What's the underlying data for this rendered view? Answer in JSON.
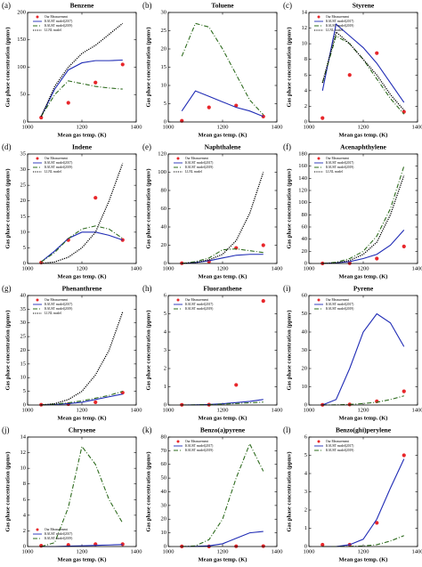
{
  "chart_data": [
    {
      "type": "line",
      "letter": "(a)",
      "title": "Benzene",
      "x_label": "Mean gas temp. (K)",
      "y_label": "Gas phase concentration (ppmv)",
      "xlim": [
        1000,
        1400
      ],
      "xticks": [
        1000,
        1200,
        1400
      ],
      "ylim": [
        0,
        200
      ],
      "yticks": [
        0,
        50,
        100,
        150,
        200
      ],
      "x": [
        1050,
        1100,
        1150,
        1200,
        1250,
        1300,
        1350
      ],
      "legend": "upper left",
      "series": [
        {
          "name": "Our Measurement",
          "color": "#e8262a",
          "marker": "circle",
          "x": [
            1050,
            1150,
            1250,
            1350
          ],
          "values": [
            8,
            35,
            72,
            105
          ]
        },
        {
          "name": "KAUST model(2017)",
          "color": "#1f2bb5",
          "dash": "solid",
          "values": [
            10,
            60,
            95,
            108,
            112,
            112,
            113
          ]
        },
        {
          "name": "KAUST model(2019)",
          "color": "#2e6b1e",
          "dash": "dashdot",
          "values": [
            10,
            50,
            75,
            70,
            65,
            62,
            60
          ]
        },
        {
          "name": "LLNL model",
          "color": "#000000",
          "dash": "dotted",
          "values": [
            10,
            65,
            100,
            125,
            140,
            160,
            180
          ]
        }
      ]
    },
    {
      "type": "line",
      "letter": "(b)",
      "title": "Toluene",
      "x_label": "Mean gas temp. (K)",
      "y_label": "Gas phase concentration (ppmv)",
      "xlim": [
        1000,
        1400
      ],
      "xticks": [
        1000,
        1200,
        1400
      ],
      "ylim": [
        0,
        30
      ],
      "yticks": [
        0,
        5,
        10,
        15,
        20,
        25,
        30
      ],
      "x": [
        1050,
        1100,
        1150,
        1200,
        1250,
        1300,
        1350
      ],
      "series": [
        {
          "color": "#e8262a",
          "marker": "circle",
          "x": [
            1050,
            1150,
            1250,
            1350
          ],
          "values": [
            0.3,
            4,
            4.5,
            1.5
          ]
        },
        {
          "color": "#1f2bb5",
          "dash": "solid",
          "values": [
            3,
            8.5,
            7,
            5.5,
            4,
            3,
            1.5
          ]
        },
        {
          "color": "#2e6b1e",
          "dash": "dashdot",
          "values": [
            18,
            27,
            26,
            20,
            13,
            6,
            2
          ]
        }
      ]
    },
    {
      "type": "line",
      "letter": "(c)",
      "title": "Styrene",
      "x_label": "Mean gas temp. (K)",
      "y_label": "Gas phase concentration (ppmv)",
      "xlim": [
        1000,
        1400
      ],
      "xticks": [
        1000,
        1200,
        1400
      ],
      "ylim": [
        0,
        14
      ],
      "yticks": [
        0,
        2,
        4,
        6,
        8,
        10,
        12,
        14
      ],
      "x": [
        1050,
        1100,
        1150,
        1200,
        1250,
        1300,
        1350
      ],
      "legend": "upper left",
      "series": [
        {
          "name": "Our Measurement",
          "color": "#e8262a",
          "marker": "circle",
          "x": [
            1050,
            1150,
            1250,
            1350
          ],
          "values": [
            0.5,
            6,
            8.8,
            1.3
          ]
        },
        {
          "name": "KAUST model(2017)",
          "color": "#1f2bb5",
          "dash": "solid",
          "values": [
            4,
            12.5,
            11,
            9.5,
            7.5,
            5,
            2.5
          ]
        },
        {
          "name": "KAUST model(2019)",
          "color": "#2e6b1e",
          "dash": "dashdot",
          "values": [
            5,
            11,
            10,
            8,
            5.5,
            3,
            1
          ]
        },
        {
          "name": "LLNL model",
          "color": "#000000",
          "dash": "dotted",
          "values": [
            5,
            11.5,
            10,
            8,
            6,
            3.5,
            1.5
          ]
        }
      ]
    },
    {
      "type": "line",
      "letter": "(d)",
      "title": "Indene",
      "x_label": "Mean gas temp. (K)",
      "y_label": "Gas phase concentration (ppmv)",
      "xlim": [
        1000,
        1400
      ],
      "xticks": [
        1000,
        1200,
        1400
      ],
      "ylim": [
        0,
        35
      ],
      "yticks": [
        0,
        5,
        10,
        15,
        20,
        25,
        30,
        35
      ],
      "x": [
        1050,
        1100,
        1150,
        1200,
        1250,
        1300,
        1350
      ],
      "legend": "upper left",
      "series": [
        {
          "name": "Our Measurement",
          "color": "#e8262a",
          "marker": "circle",
          "x": [
            1050,
            1150,
            1250,
            1350
          ],
          "values": [
            0.3,
            7.5,
            21,
            7.5
          ]
        },
        {
          "name": "KAUST model(2017)",
          "color": "#1f2bb5",
          "dash": "solid",
          "values": [
            0.5,
            4,
            8,
            10,
            10,
            9,
            7.5
          ]
        },
        {
          "name": "KAUST model(2019)",
          "color": "#2e6b1e",
          "dash": "dashdot",
          "values": [
            0.5,
            3.5,
            8,
            11,
            12,
            11,
            8
          ]
        },
        {
          "name": "LLNL model",
          "color": "#000000",
          "dash": "dotted",
          "values": [
            0,
            0.5,
            2,
            5,
            10,
            20,
            32
          ]
        }
      ]
    },
    {
      "type": "line",
      "letter": "(e)",
      "title": "Naphthalene",
      "x_label": "Mean gas temp. (K)",
      "y_label": "Gas phase concentration (ppmv)",
      "xlim": [
        1000,
        1400
      ],
      "xticks": [
        1000,
        1200,
        1400
      ],
      "ylim": [
        0,
        120
      ],
      "yticks": [
        0,
        20,
        40,
        60,
        80,
        100,
        120
      ],
      "x": [
        1050,
        1100,
        1150,
        1200,
        1250,
        1300,
        1350
      ],
      "legend": "upper left",
      "series": [
        {
          "name": "Our Measurement",
          "color": "#e8262a",
          "marker": "circle",
          "x": [
            1050,
            1150,
            1250,
            1350
          ],
          "values": [
            0.3,
            2,
            17,
            20
          ]
        },
        {
          "name": "KAUST model(2017)",
          "color": "#1f2bb5",
          "dash": "solid",
          "values": [
            0,
            1,
            3,
            6,
            9,
            10,
            10
          ]
        },
        {
          "name": "KAUST model(2019)",
          "color": "#2e6b1e",
          "dash": "dashdot",
          "values": [
            0,
            2,
            6,
            15,
            16,
            14,
            12
          ]
        },
        {
          "name": "LLNL model",
          "color": "#000000",
          "dash": "dotted",
          "values": [
            0,
            1,
            4,
            10,
            25,
            55,
            100
          ]
        }
      ]
    },
    {
      "type": "line",
      "letter": "(f)",
      "title": "Acenaphthylene",
      "x_label": "Mean gas temp. (K)",
      "y_label": "Gas phase concentration (ppmv)",
      "xlim": [
        1000,
        1400
      ],
      "xticks": [
        1000,
        1200,
        1400
      ],
      "ylim": [
        0,
        180
      ],
      "yticks": [
        0,
        20,
        40,
        60,
        80,
        100,
        120,
        140,
        160,
        180
      ],
      "x": [
        1050,
        1100,
        1150,
        1200,
        1250,
        1300,
        1350
      ],
      "legend": "upper left",
      "series": [
        {
          "name": "Our Measurement",
          "color": "#e8262a",
          "marker": "circle",
          "x": [
            1050,
            1150,
            1250,
            1350
          ],
          "values": [
            0.1,
            0.5,
            8,
            28
          ]
        },
        {
          "name": "KAUST model(2017)",
          "color": "#1f2bb5",
          "dash": "solid",
          "values": [
            0,
            1,
            3,
            8,
            15,
            30,
            55
          ]
        },
        {
          "name": "KAUST model(2019)",
          "color": "#2e6b1e",
          "dash": "dashdot",
          "values": [
            0,
            2,
            8,
            20,
            45,
            90,
            160
          ]
        },
        {
          "name": "LLNL model",
          "color": "#000000",
          "dash": "dotted",
          "values": [
            0,
            1,
            5,
            15,
            35,
            80,
            145
          ]
        }
      ]
    },
    {
      "type": "line",
      "letter": "(g)",
      "title": "Phenanthrene",
      "x_label": "Mean gas temp. (K)",
      "y_label": "Gas phase concentration (ppmv)",
      "xlim": [
        1000,
        1400
      ],
      "xticks": [
        1000,
        1200,
        1400
      ],
      "ylim": [
        0,
        40
      ],
      "yticks": [
        0,
        5,
        10,
        15,
        20,
        25,
        30,
        35,
        40
      ],
      "x": [
        1050,
        1100,
        1150,
        1200,
        1250,
        1300,
        1350
      ],
      "legend": "upper left",
      "series": [
        {
          "name": "Our Measurement",
          "color": "#e8262a",
          "marker": "circle",
          "x": [
            1050,
            1150,
            1250,
            1350
          ],
          "values": [
            0.1,
            0.3,
            1,
            4.5
          ]
        },
        {
          "name": "KAUST model(2017)",
          "color": "#1f2bb5",
          "dash": "solid",
          "values": [
            0,
            0.2,
            0.5,
            1,
            2,
            3,
            4
          ]
        },
        {
          "name": "KAUST model(2019)",
          "color": "#2e6b1e",
          "dash": "dashdot",
          "values": [
            0,
            0.3,
            0.8,
            1.5,
            2.5,
            3.5,
            5
          ]
        },
        {
          "name": "LLNL model",
          "color": "#000000",
          "dash": "dotted",
          "values": [
            0,
            0.5,
            2,
            5,
            11,
            20,
            34
          ]
        }
      ]
    },
    {
      "type": "line",
      "letter": "(h)",
      "title": "Fluoranthene",
      "x_label": "Mean gas temp. (K)",
      "y_label": "Gas phase concentration (ppmv)",
      "xlim": [
        1000,
        1400
      ],
      "xticks": [
        1000,
        1200,
        1400
      ],
      "ylim": [
        0,
        6
      ],
      "yticks": [
        0,
        1,
        2,
        3,
        4,
        5,
        6
      ],
      "x": [
        1050,
        1100,
        1150,
        1200,
        1250,
        1300,
        1350
      ],
      "legend": "upper left",
      "series": [
        {
          "name": "Our Measurement",
          "color": "#e8262a",
          "marker": "circle",
          "x": [
            1050,
            1150,
            1250,
            1350
          ],
          "values": [
            0.01,
            0.02,
            1.1,
            5.7
          ]
        },
        {
          "name": "KAUST model(2017)",
          "color": "#1f2bb5",
          "dash": "solid",
          "values": [
            0,
            0.01,
            0.03,
            0.07,
            0.13,
            0.2,
            0.3
          ]
        },
        {
          "name": "KAUST model(2019)",
          "color": "#2e6b1e",
          "dash": "dashdot",
          "values": [
            0,
            0.01,
            0.02,
            0.05,
            0.08,
            0.12,
            0.16
          ]
        }
      ]
    },
    {
      "type": "line",
      "letter": "(i)",
      "title": "Pyrene",
      "x_label": "Mean gas temp. (K)",
      "y_label": "Gas phase concentration (ppmv)",
      "xlim": [
        1000,
        1400
      ],
      "xticks": [
        1000,
        1200,
        1400
      ],
      "ylim": [
        0,
        60
      ],
      "yticks": [
        0,
        10,
        20,
        30,
        40,
        50,
        60
      ],
      "x": [
        1050,
        1100,
        1150,
        1200,
        1250,
        1300,
        1350
      ],
      "legend": "upper left",
      "series": [
        {
          "name": "Our Measurement",
          "color": "#e8262a",
          "marker": "circle",
          "x": [
            1050,
            1150,
            1250,
            1350
          ],
          "values": [
            0.1,
            0.3,
            2,
            7.5
          ]
        },
        {
          "name": "KAUST model(2017)",
          "color": "#1f2bb5",
          "dash": "solid",
          "values": [
            0,
            3,
            20,
            40,
            50,
            45,
            32
          ]
        },
        {
          "name": "KAUST model(2019)",
          "color": "#2e6b1e",
          "dash": "dashdot",
          "values": [
            0,
            0.1,
            0.3,
            0.8,
            1.5,
            3,
            5
          ]
        }
      ]
    },
    {
      "type": "line",
      "letter": "(j)",
      "title": "Chrysene",
      "x_label": "Mean gas temp. (K)",
      "y_label": "Gas phase concentration (ppmv)",
      "xlim": [
        1000,
        1400
      ],
      "xticks": [
        1000,
        1200,
        1400
      ],
      "ylim": [
        0,
        14
      ],
      "yticks": [
        0,
        2,
        4,
        6,
        8,
        10,
        12,
        14
      ],
      "x": [
        1050,
        1100,
        1150,
        1200,
        1250,
        1300,
        1350
      ],
      "legend": "lower left",
      "series": [
        {
          "name": "Our Measurement",
          "color": "#e8262a",
          "marker": "circle",
          "x": [
            1050,
            1150,
            1250,
            1350
          ],
          "values": [
            0.1,
            0.2,
            0.3,
            0.3
          ]
        },
        {
          "name": "KAUST model(2017)",
          "color": "#1f2bb5",
          "dash": "solid",
          "values": [
            0,
            0,
            0.05,
            0.1,
            0.15,
            0.2,
            0.25
          ]
        },
        {
          "name": "KAUST model(2019)",
          "color": "#2e6b1e",
          "dash": "dashdot",
          "values": [
            0,
            0.5,
            5,
            12.8,
            10.5,
            6,
            3
          ]
        }
      ]
    },
    {
      "type": "line",
      "letter": "(k)",
      "title": "Benzo(a)pyrene",
      "x_label": "Mean gas temp. (K)",
      "y_label": "Gas phase concentration (ppmv)",
      "xlim": [
        1000,
        1400
      ],
      "xticks": [
        1000,
        1200,
        1400
      ],
      "ylim": [
        0,
        80
      ],
      "yticks": [
        0,
        10,
        20,
        30,
        40,
        50,
        60,
        70,
        80
      ],
      "x": [
        1050,
        1100,
        1150,
        1200,
        1250,
        1300,
        1350
      ],
      "legend": "upper left",
      "series": [
        {
          "name": "Our Measurement",
          "color": "#e8262a",
          "marker": "circle",
          "x": [
            1050,
            1150,
            1250,
            1350
          ],
          "values": [
            0.1,
            0.1,
            0.2,
            0.3
          ]
        },
        {
          "name": "KAUST model(2017)",
          "color": "#1f2bb5",
          "dash": "solid",
          "values": [
            0,
            0.1,
            0.5,
            2,
            6,
            10,
            11
          ]
        },
        {
          "name": "KAUST model(2019)",
          "color": "#2e6b1e",
          "dash": "dashdot",
          "values": [
            0,
            0.5,
            5,
            20,
            50,
            75,
            55
          ]
        }
      ]
    },
    {
      "type": "line",
      "letter": "(l)",
      "title": "Benzo(ghi)perylene",
      "x_label": "Mean gas temp. (K)",
      "y_label": "Gas phase concentration (ppmv)",
      "xlim": [
        1000,
        1400
      ],
      "xticks": [
        1000,
        1200,
        1400
      ],
      "ylim": [
        0,
        6
      ],
      "yticks": [
        0,
        1,
        2,
        3,
        4,
        5,
        6
      ],
      "x": [
        1050,
        1100,
        1150,
        1200,
        1250,
        1300,
        1350
      ],
      "legend": "upper left",
      "series": [
        {
          "name": "Our Measurement",
          "color": "#e8262a",
          "marker": "circle",
          "x": [
            1050,
            1150,
            1250,
            1350
          ],
          "values": [
            0.1,
            0.1,
            1.3,
            5
          ]
        },
        {
          "name": "KAUST model(2017)",
          "color": "#1f2bb5",
          "dash": "solid",
          "values": [
            0,
            0,
            0.1,
            0.4,
            1.5,
            3.2,
            4.8
          ]
        },
        {
          "name": "KAUST model(2019)",
          "color": "#2e6b1e",
          "dash": "dashdot",
          "values": [
            0,
            0,
            0.01,
            0.03,
            0.1,
            0.3,
            0.6
          ]
        }
      ]
    }
  ]
}
